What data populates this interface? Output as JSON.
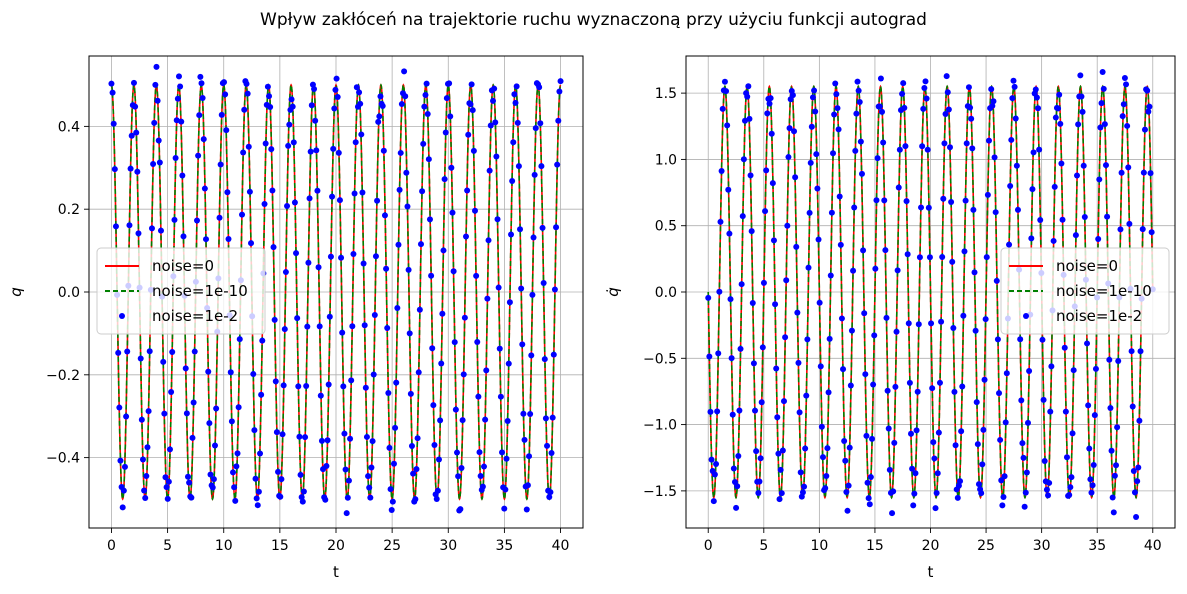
{
  "figure": {
    "suptitle": "Wpływ zakłóceń na trajektorie ruchu wyznaczoną przy użyciu funkcji autograd"
  },
  "chart_data": [
    {
      "type": "line",
      "panel": "left",
      "xlabel": "t",
      "ylabel": "q",
      "xlim": [
        -2.0,
        42.0
      ],
      "ylim": [
        -0.57,
        0.57
      ],
      "xticks": [
        0,
        5,
        10,
        15,
        20,
        25,
        30,
        35,
        40
      ],
      "yticks": [
        -0.4,
        -0.2,
        0.0,
        0.2,
        0.4
      ],
      "ytick_labels": [
        "−0.4",
        "−0.2",
        "0.0",
        "0.2",
        "0.4"
      ],
      "grid": true,
      "legend_position": "center-left",
      "model": {
        "amplitude": 0.5,
        "frequency_hz": 0.5,
        "phase_at_t0": "max"
      },
      "series": [
        {
          "name": "noise=0",
          "style": "solid",
          "color": "#ff0000",
          "marker": "none",
          "t_range": [
            0,
            40
          ],
          "amplitude": 0.5
        },
        {
          "name": "noise=1e-10",
          "style": "dashed",
          "color": "#008000",
          "marker": "none",
          "t_range": [
            0,
            40
          ],
          "amplitude": 0.5
        },
        {
          "name": "noise=1e-2",
          "style": "points",
          "color": "#0000ff",
          "marker": "circle",
          "t_range": [
            0,
            40
          ],
          "amplitude": 0.5,
          "noise_std": 0.01
        }
      ]
    },
    {
      "type": "line",
      "panel": "right",
      "xlabel": "t",
      "ylabel": "q̇",
      "xlim": [
        -2.0,
        42.0
      ],
      "ylim": [
        -1.78,
        1.78
      ],
      "xticks": [
        0,
        5,
        10,
        15,
        20,
        25,
        30,
        35,
        40
      ],
      "yticks": [
        -1.5,
        -1.0,
        -0.5,
        0.0,
        0.5,
        1.0,
        1.5
      ],
      "ytick_labels": [
        "−1.5",
        "−1.0",
        "−0.5",
        "0.0",
        "0.5",
        "1.0",
        "1.5"
      ],
      "grid": true,
      "legend_position": "center-right",
      "model": {
        "amplitude": 1.55,
        "frequency_hz": 0.5,
        "phase_at_t0": "zero-crossing"
      },
      "series": [
        {
          "name": "noise=0",
          "style": "solid",
          "color": "#ff0000",
          "marker": "none",
          "t_range": [
            0,
            40
          ],
          "amplitude": 1.55
        },
        {
          "name": "noise=1e-10",
          "style": "dashed",
          "color": "#008000",
          "marker": "none",
          "t_range": [
            0,
            40
          ],
          "amplitude": 1.55
        },
        {
          "name": "noise=1e-2",
          "style": "points",
          "color": "#0000ff",
          "marker": "circle",
          "t_range": [
            0,
            40
          ],
          "amplitude": 1.55,
          "noise_std": 0.03
        }
      ]
    }
  ]
}
